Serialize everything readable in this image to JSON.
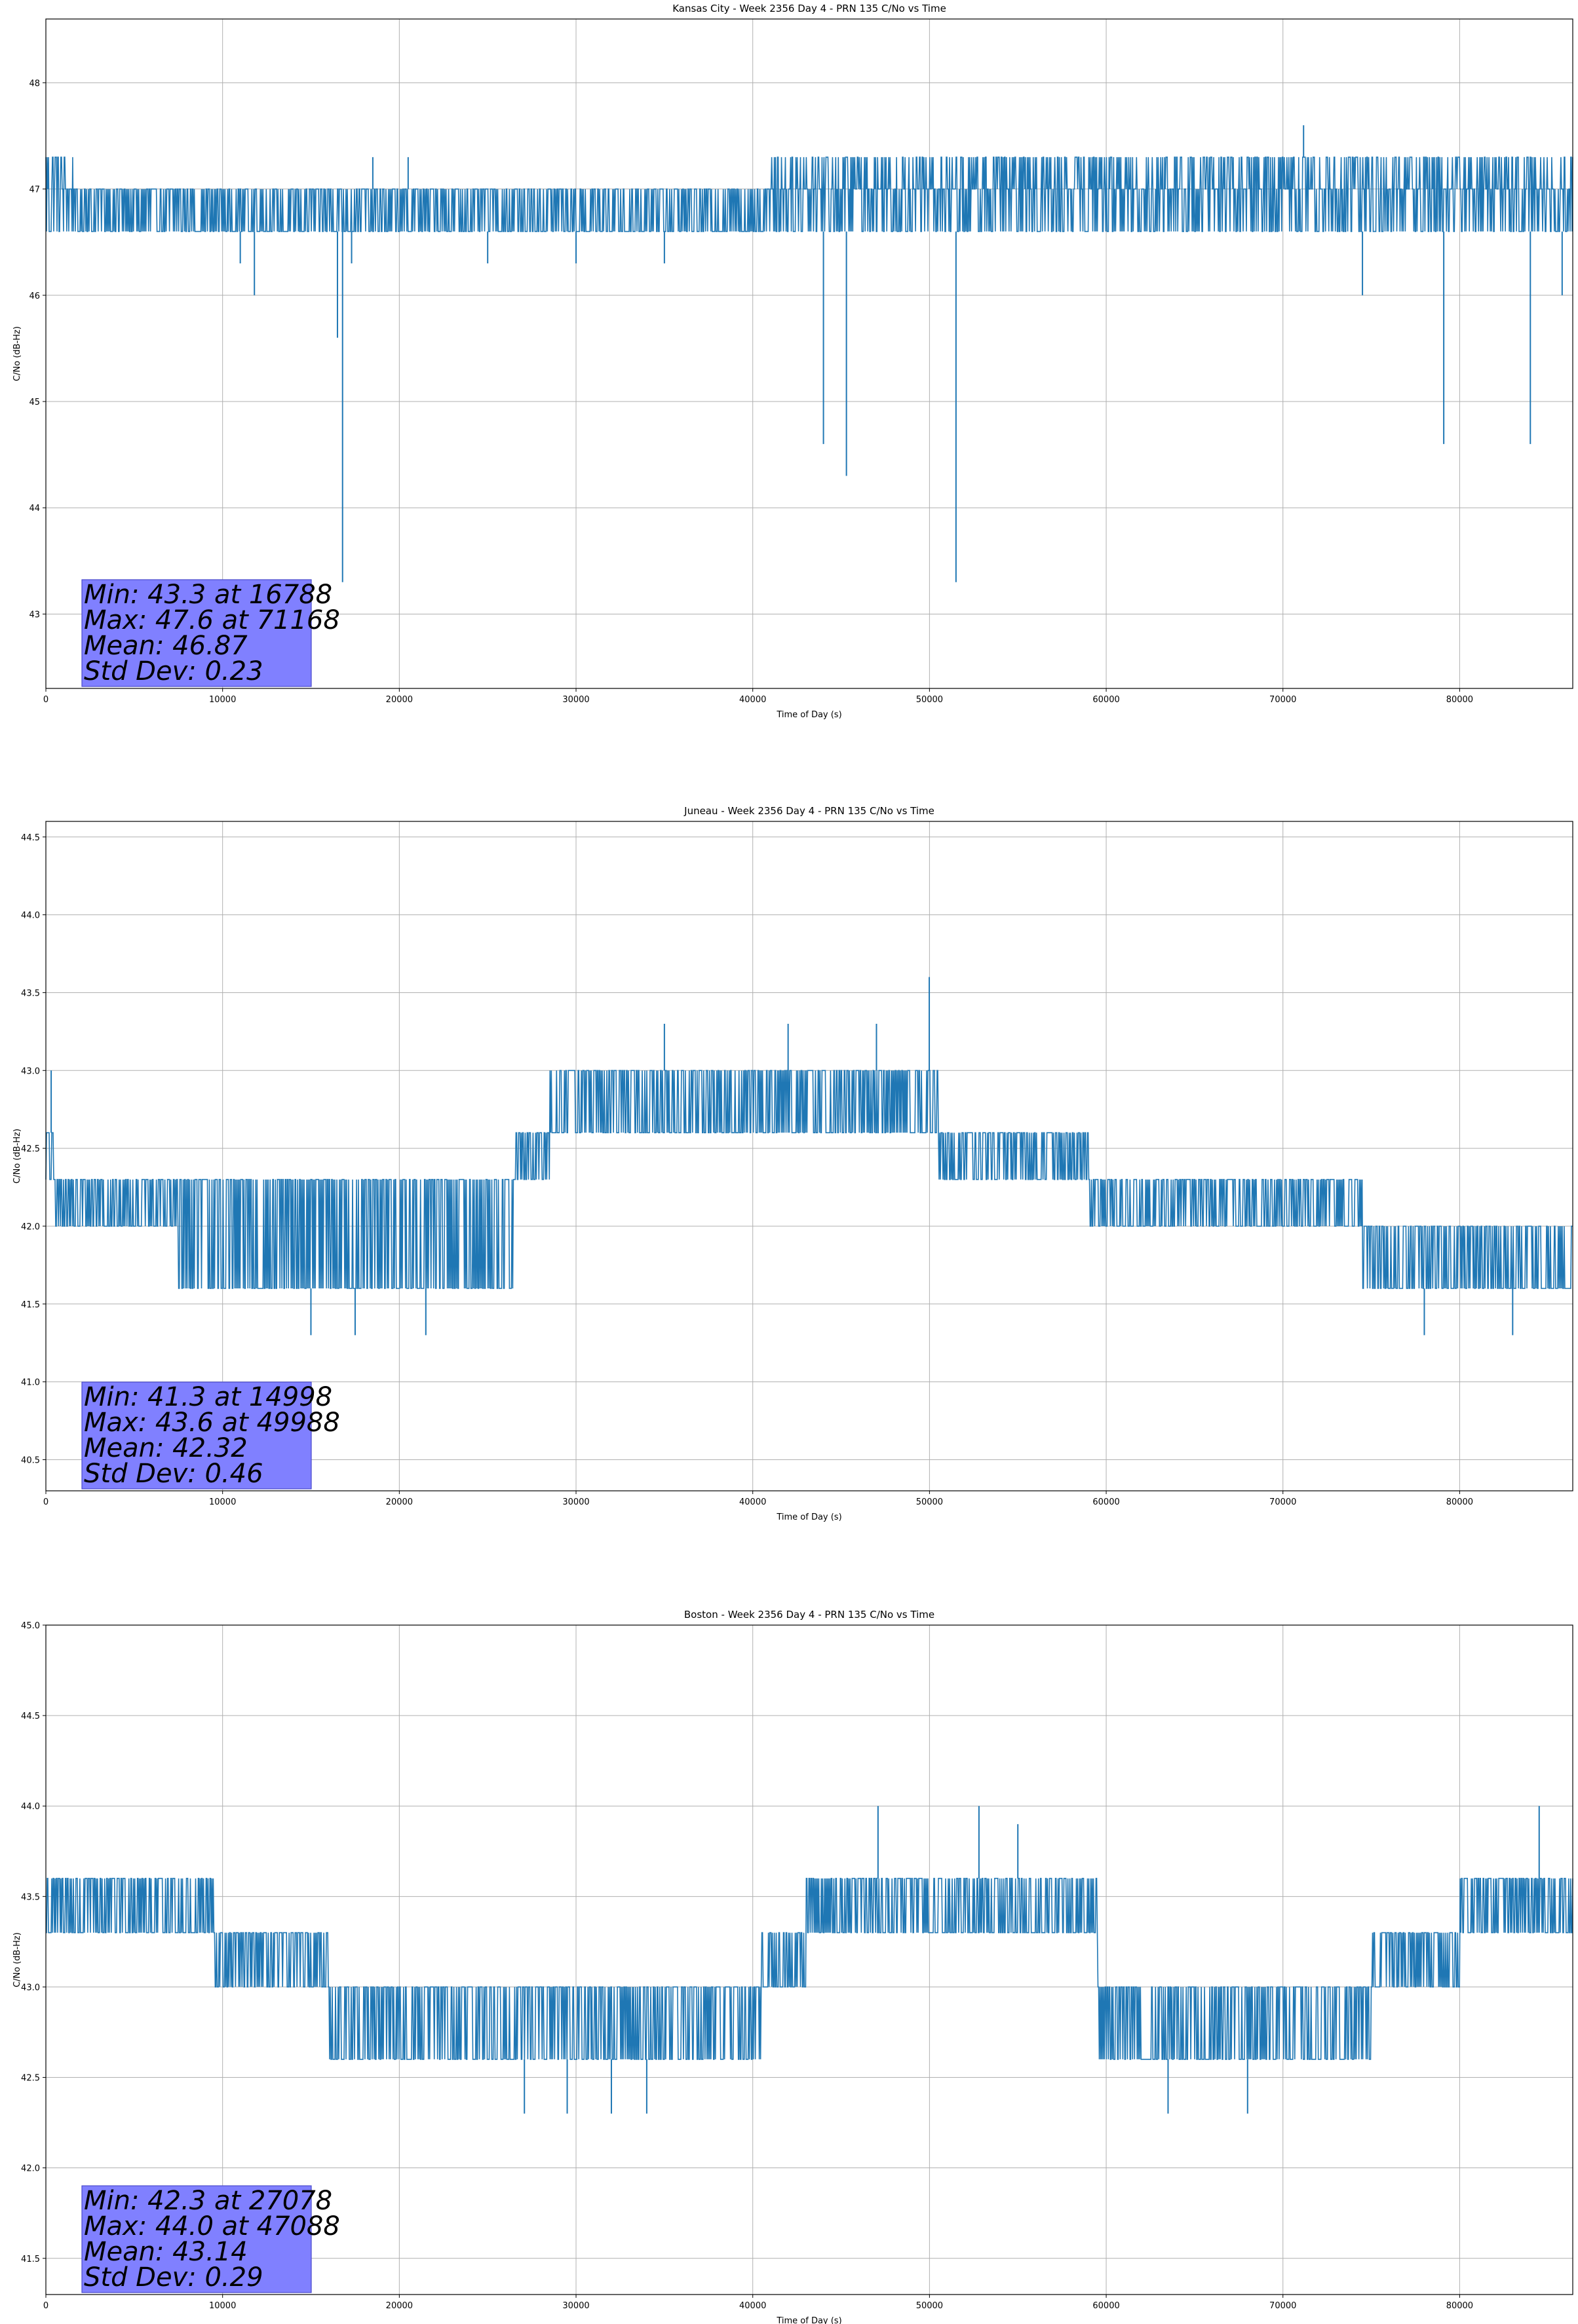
{
  "chart_data": [
    {
      "type": "line",
      "title": "Kansas City - Week 2356 Day 4 - PRN 135 C/No vs Time",
      "xlabel": "Time of Day (s)",
      "ylabel": "C/No (dB-Hz)",
      "xlim": [
        0,
        86400
      ],
      "ylim": [
        42.3,
        48.6
      ],
      "xticks": [
        0,
        10000,
        20000,
        30000,
        40000,
        50000,
        60000,
        70000,
        80000
      ],
      "yticks": [
        43,
        44,
        45,
        46,
        47,
        48
      ],
      "ytick_decimals": 0,
      "grid": true,
      "color": "#1f77b4",
      "band": {
        "low": 46.6,
        "mid": 47.0,
        "high": 47.3
      },
      "segments": [
        {
          "x": [
            0,
            1700
          ],
          "mode": "full"
        },
        {
          "x": [
            1700,
            41000
          ],
          "mode": "lowmid"
        },
        {
          "x": [
            41000,
            86400
          ],
          "mode": "full"
        }
      ],
      "spikes_down": [
        {
          "x": 11000,
          "y": 46.3
        },
        {
          "x": 11800,
          "y": 46.0
        },
        {
          "x": 16500,
          "y": 45.6
        },
        {
          "x": 16788,
          "y": 43.3
        },
        {
          "x": 17300,
          "y": 46.3
        },
        {
          "x": 25000,
          "y": 46.3
        },
        {
          "x": 30000,
          "y": 46.3
        },
        {
          "x": 35000,
          "y": 46.3
        },
        {
          "x": 44000,
          "y": 44.6
        },
        {
          "x": 45300,
          "y": 44.3
        },
        {
          "x": 51500,
          "y": 43.3
        },
        {
          "x": 74500,
          "y": 46.0
        },
        {
          "x": 79100,
          "y": 44.6
        },
        {
          "x": 84000,
          "y": 44.6
        },
        {
          "x": 85800,
          "y": 46.0
        }
      ],
      "spikes_up": [
        {
          "x": 71168,
          "y": 47.6
        },
        {
          "x": 18500,
          "y": 47.3
        },
        {
          "x": 20500,
          "y": 47.3
        }
      ],
      "stats": [
        "Min: 43.3 at 16788",
        "Max: 47.6 at 71168",
        "Mean: 46.87",
        "Std Dev: 0.23"
      ]
    },
    {
      "type": "line",
      "title": "Juneau - Week 2356 Day 4 - PRN 135 C/No vs Time",
      "xlabel": "Time of Day (s)",
      "ylabel": "C/No (dB-Hz)",
      "xlim": [
        0,
        86400
      ],
      "ylim": [
        40.3,
        44.6
      ],
      "xticks": [
        0,
        10000,
        20000,
        30000,
        40000,
        50000,
        60000,
        70000,
        80000
      ],
      "yticks": [
        40.5,
        41.0,
        41.5,
        42.0,
        42.5,
        43.0,
        43.5,
        44.0,
        44.5
      ],
      "ytick_decimals": 1,
      "grid": true,
      "color": "#1f77b4",
      "levels": [
        {
          "x": [
            0,
            500
          ],
          "lo": 42.3,
          "hi": 42.6
        },
        {
          "x": [
            500,
            7500
          ],
          "lo": 42.0,
          "hi": 42.3
        },
        {
          "x": [
            7500,
            26500
          ],
          "lo": 41.6,
          "hi": 42.3
        },
        {
          "x": [
            26500,
            28500
          ],
          "lo": 42.3,
          "hi": 42.6
        },
        {
          "x": [
            28500,
            50500
          ],
          "lo": 42.6,
          "hi": 43.0
        },
        {
          "x": [
            50500,
            59000
          ],
          "lo": 42.3,
          "hi": 42.6
        },
        {
          "x": [
            59000,
            74500
          ],
          "lo": 42.0,
          "hi": 42.3
        },
        {
          "x": [
            74500,
            86400
          ],
          "lo": 41.6,
          "hi": 42.0
        }
      ],
      "spikes_down": [
        {
          "x": 14998,
          "y": 41.3
        },
        {
          "x": 17500,
          "y": 41.3
        },
        {
          "x": 21500,
          "y": 41.3
        },
        {
          "x": 78000,
          "y": 41.3
        },
        {
          "x": 83000,
          "y": 41.3
        }
      ],
      "spikes_up": [
        {
          "x": 49988,
          "y": 43.6
        },
        {
          "x": 35000,
          "y": 43.3
        },
        {
          "x": 42000,
          "y": 43.3
        },
        {
          "x": 47000,
          "y": 43.3
        },
        {
          "x": 300,
          "y": 43.0
        }
      ],
      "stats": [
        "Min: 41.3 at 14998",
        "Max: 43.6 at 49988",
        "Mean: 42.32",
        "Std Dev: 0.46"
      ]
    },
    {
      "type": "line",
      "title": "Boston - Week 2356 Day 4 - PRN 135 C/No vs Time",
      "xlabel": "Time of Day (s)",
      "ylabel": "C/No (dB-Hz)",
      "xlim": [
        0,
        86400
      ],
      "ylim": [
        41.3,
        45.0
      ],
      "xticks": [
        0,
        10000,
        20000,
        30000,
        40000,
        50000,
        60000,
        70000,
        80000
      ],
      "yticks": [
        41.5,
        42.0,
        42.5,
        43.0,
        43.5,
        44.0,
        44.5,
        45.0
      ],
      "ytick_decimals": 1,
      "grid": true,
      "color": "#1f77b4",
      "levels": [
        {
          "x": [
            0,
            9500
          ],
          "lo": 43.3,
          "hi": 43.6
        },
        {
          "x": [
            9500,
            16000
          ],
          "lo": 43.0,
          "hi": 43.3
        },
        {
          "x": [
            16000,
            40500
          ],
          "lo": 42.6,
          "hi": 43.0
        },
        {
          "x": [
            40500,
            43000
          ],
          "lo": 43.0,
          "hi": 43.3
        },
        {
          "x": [
            43000,
            59500
          ],
          "lo": 43.3,
          "hi": 43.6
        },
        {
          "x": [
            59500,
            75000
          ],
          "lo": 42.6,
          "hi": 43.0
        },
        {
          "x": [
            75000,
            80000
          ],
          "lo": 43.0,
          "hi": 43.3
        },
        {
          "x": [
            80000,
            86400
          ],
          "lo": 43.3,
          "hi": 43.6
        }
      ],
      "spikes_down": [
        {
          "x": 27078,
          "y": 42.3
        },
        {
          "x": 29500,
          "y": 42.3
        },
        {
          "x": 32000,
          "y": 42.3
        },
        {
          "x": 34000,
          "y": 42.3
        },
        {
          "x": 63500,
          "y": 42.3
        },
        {
          "x": 68000,
          "y": 42.3
        }
      ],
      "spikes_up": [
        {
          "x": 47088,
          "y": 44.0
        },
        {
          "x": 52800,
          "y": 44.0
        },
        {
          "x": 55000,
          "y": 43.9
        },
        {
          "x": 84500,
          "y": 44.0
        }
      ],
      "stats": [
        "Min: 42.3 at 27078",
        "Max: 44.0 at 47088",
        "Mean: 43.14",
        "Std Dev: 0.29"
      ]
    }
  ]
}
